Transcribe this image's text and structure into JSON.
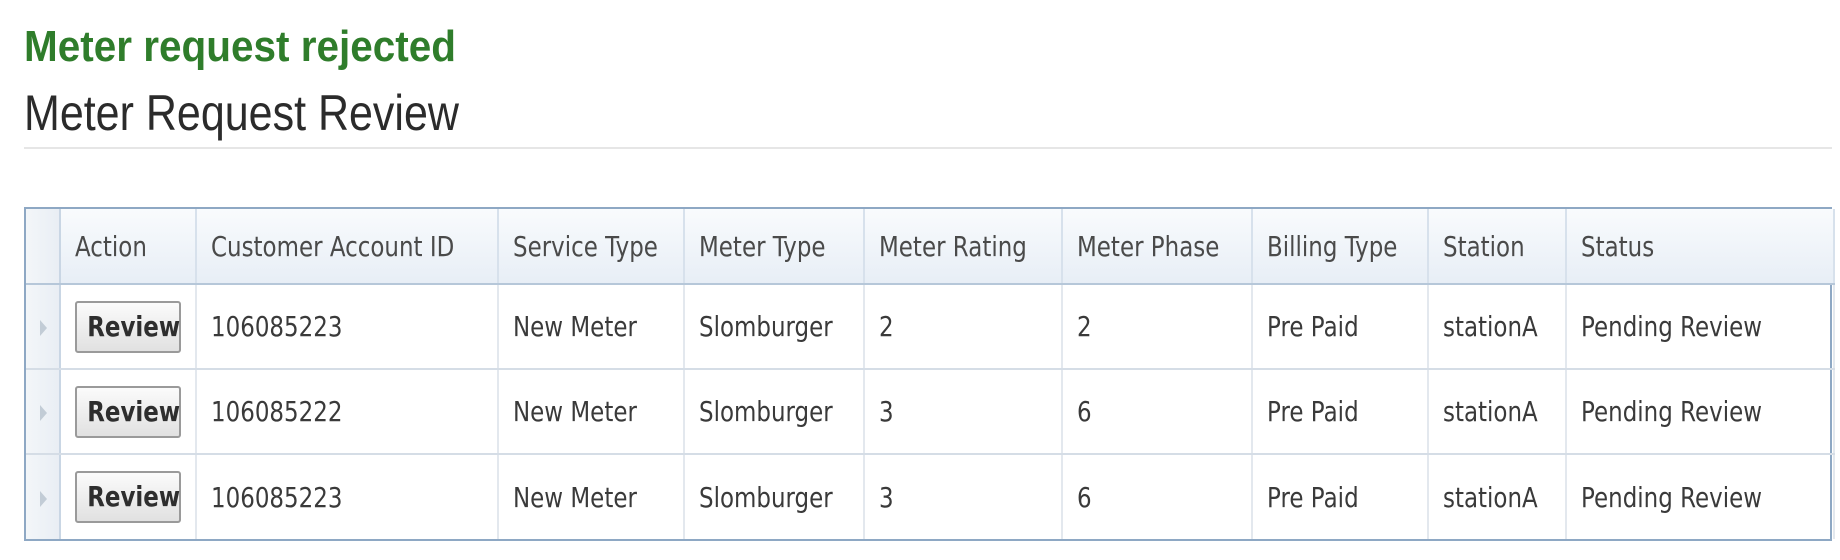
{
  "alert": {
    "message": "Meter request rejected",
    "color": "#2f7d2b"
  },
  "page": {
    "title": "Meter Request Review"
  },
  "grid": {
    "columns": [
      "Action",
      "Customer Account ID",
      "Service Type",
      "Meter Type",
      "Meter Rating",
      "Meter Phase",
      "Billing Type",
      "Station",
      "Status"
    ],
    "rows": [
      {
        "action_label": "Review",
        "customer_account_id": "106085223",
        "service_type": "New Meter",
        "meter_type": "Slomburger",
        "meter_rating": "2",
        "meter_phase": "2",
        "billing_type": "Pre Paid",
        "station": "stationA",
        "status": "Pending Review"
      },
      {
        "action_label": "Review",
        "customer_account_id": "106085222",
        "service_type": "New Meter",
        "meter_type": "Slomburger",
        "meter_rating": "3",
        "meter_phase": "6",
        "billing_type": "Pre Paid",
        "station": "stationA",
        "status": "Pending Review"
      },
      {
        "action_label": "Review",
        "customer_account_id": "106085223",
        "service_type": "New Meter",
        "meter_type": "Slomburger",
        "meter_rating": "3",
        "meter_phase": "6",
        "billing_type": "Pre Paid",
        "station": "stationA",
        "status": "Pending Review"
      }
    ],
    "row_indicator_icon": "row-indicator-icon",
    "border_color": "#8ea8c4"
  }
}
